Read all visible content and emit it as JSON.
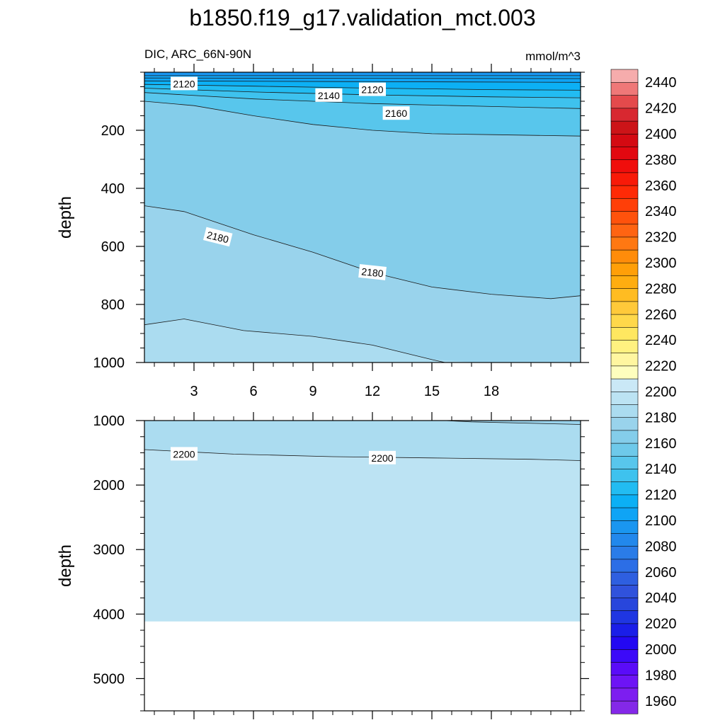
{
  "chart_data": {
    "type": "contour",
    "title": "b1850.f19_g17.validation_mct.003",
    "left_string": "DIC, ARC_66N-90N",
    "right_string": "mmol/m^3",
    "x": {
      "label": "",
      "range": [
        0.5,
        22.5
      ],
      "tick_values": [
        3,
        6,
        9,
        12,
        15,
        18
      ],
      "tick_labels": [
        "3",
        "6",
        "9",
        "12",
        "15",
        "18"
      ]
    },
    "panels": [
      {
        "name": "upper",
        "ylabel": "depth",
        "depth_range": [
          0,
          1000
        ],
        "tick_values": [
          200,
          400,
          600,
          800,
          1000
        ],
        "tick_labels": [
          "200",
          "400",
          "600",
          "800",
          "1000"
        ]
      },
      {
        "name": "lower",
        "ylabel": "depth",
        "depth_range": [
          1000,
          5500
        ],
        "tick_values": [
          1000,
          2000,
          3000,
          4000,
          5000
        ],
        "tick_labels": [
          "1000",
          "2000",
          "3000",
          "4000",
          "5000"
        ],
        "data_bottom_depth": 4110
      }
    ],
    "contour_lines": [
      {
        "level": 2110,
        "x": [
          0.5,
          22.5
        ],
        "depth": [
          12,
          12
        ]
      },
      {
        "level": 2115,
        "x": [
          0.5,
          22.5
        ],
        "depth": [
          20,
          22
        ]
      },
      {
        "level": 2120,
        "x": [
          0.5,
          22.5
        ],
        "depth": [
          30,
          35
        ]
      },
      {
        "level": 2130,
        "x": [
          0.5,
          6,
          12,
          18,
          22.5
        ],
        "depth": [
          42,
          48,
          55,
          60,
          62
        ]
      },
      {
        "level": 2140,
        "x": [
          0.5,
          6,
          12,
          18,
          22.5
        ],
        "depth": [
          55,
          68,
          78,
          85,
          88
        ]
      },
      {
        "level": 2150,
        "x": [
          0.5,
          6,
          12,
          18,
          22.5
        ],
        "depth": [
          70,
          92,
          108,
          118,
          125
        ]
      },
      {
        "level": 2160,
        "x": [
          0.5,
          3,
          6,
          9,
          12,
          15,
          18,
          22.5
        ],
        "depth": [
          100,
          115,
          150,
          180,
          200,
          212,
          215,
          220
        ]
      },
      {
        "level": 2180,
        "x": [
          0.5,
          2.5,
          6,
          9,
          12,
          15,
          18,
          21,
          22.5
        ],
        "depth": [
          460,
          480,
          560,
          620,
          690,
          740,
          765,
          780,
          770
        ]
      },
      {
        "level": 2190,
        "x": [
          0.5,
          2.5,
          5.5,
          9,
          12,
          15,
          17,
          22.5
        ],
        "depth": [
          870,
          850,
          890,
          910,
          940,
          990,
          1020,
          1060
        ]
      },
      {
        "level": 2200,
        "x": [
          0.5,
          5,
          10,
          15,
          20,
          22.5
        ],
        "depth": [
          1450,
          1520,
          1560,
          1580,
          1600,
          1620
        ]
      }
    ],
    "contour_labels": [
      {
        "text": "2120",
        "x": 2.5,
        "depth": 40
      },
      {
        "text": "2140",
        "x": 9.8,
        "depth": 80
      },
      {
        "text": "2120",
        "x": 12.0,
        "depth": 60
      },
      {
        "text": "2160",
        "x": 13.2,
        "depth": 142
      },
      {
        "text": "2180",
        "x": 4.2,
        "depth": 568,
        "angle": 14
      },
      {
        "text": "2180",
        "x": 12.0,
        "depth": 690,
        "angle": 6
      },
      {
        "text": "2200",
        "x": 2.5,
        "depth": 1520
      },
      {
        "text": "2200",
        "x": 12.5,
        "depth": 1580
      }
    ],
    "colorbar": {
      "levels": [
        1960,
        1970,
        1980,
        1990,
        2000,
        2010,
        2020,
        2030,
        2040,
        2050,
        2060,
        2070,
        2080,
        2090,
        2100,
        2110,
        2120,
        2130,
        2140,
        2150,
        2160,
        2170,
        2180,
        2190,
        2200,
        2210,
        2220,
        2230,
        2240,
        2250,
        2260,
        2270,
        2280,
        2290,
        2300,
        2310,
        2320,
        2330,
        2340,
        2350,
        2360,
        2370,
        2380,
        2390,
        2400,
        2410,
        2420,
        2430,
        2440,
        2450
      ],
      "labels": [
        "1960",
        "1980",
        "2000",
        "2020",
        "2040",
        "2060",
        "2080",
        "2100",
        "2120",
        "2140",
        "2160",
        "2180",
        "2200",
        "2220",
        "2240",
        "2260",
        "2280",
        "2300",
        "2320",
        "2340",
        "2360",
        "2380",
        "2400",
        "2420",
        "2440"
      ],
      "label_values": [
        1960,
        1980,
        2000,
        2020,
        2040,
        2060,
        2080,
        2100,
        2120,
        2140,
        2160,
        2180,
        2200,
        2220,
        2240,
        2260,
        2280,
        2300,
        2320,
        2340,
        2360,
        2380,
        2400,
        2420,
        2440
      ],
      "colors": [
        "#8428e8",
        "#7d1ef0",
        "#6d14f5",
        "#5a0cf8",
        "#3c0af8",
        "#2308f2",
        "#1a1ee8",
        "#1f36e2",
        "#2846dc",
        "#3052dc",
        "#2e5fe0",
        "#2c6ee6",
        "#2a7ce8",
        "#2288ec",
        "#1a96f0",
        "#0fa4f5",
        "#0cb0f5",
        "#22bcf2",
        "#3ec2ee",
        "#58c6ec",
        "#6ec9ea",
        "#84cdea",
        "#99d3ec",
        "#abdcf0",
        "#bce3f3",
        "#cae8f6",
        "#fefebe",
        "#fff6a0",
        "#fff180",
        "#ffe760",
        "#ffd84a",
        "#ffc93a",
        "#ffbc22",
        "#ffad10",
        "#ff9f08",
        "#ff8c0a",
        "#ff7812",
        "#ff6412",
        "#ff520c",
        "#ff3f08",
        "#ff2a06",
        "#f81a08",
        "#f00e0c",
        "#e20810",
        "#d40a12",
        "#cc1418",
        "#d82830",
        "#e44a4c",
        "#ef7878",
        "#f6acac"
      ]
    }
  }
}
